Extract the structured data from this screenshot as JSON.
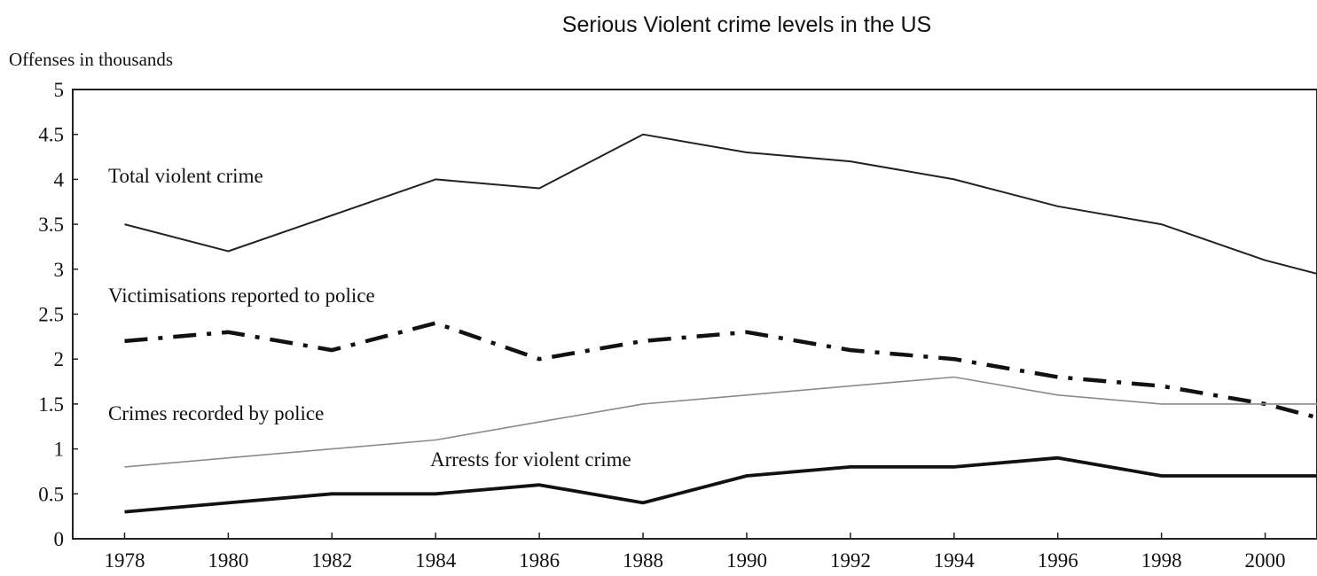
{
  "chart_data": {
    "type": "line",
    "title": "Serious Violent crime levels in the US",
    "xlabel": "",
    "ylabel": "Offenses in thousands",
    "xlim": [
      1977,
      2001
    ],
    "ylim": [
      0,
      5
    ],
    "x_ticks": [
      "1978",
      "1980",
      "1982",
      "1984",
      "1986",
      "1988",
      "1990",
      "1992",
      "1994",
      "1996",
      "1998",
      "2000"
    ],
    "y_ticks": [
      "0",
      "0.5",
      "1",
      "1.5",
      "2",
      "2.5",
      "3",
      "3.5",
      "4",
      "4.5",
      "5"
    ],
    "grid": false,
    "legend": "inline labels",
    "x": [
      1978,
      1980,
      1982,
      1984,
      1986,
      1988,
      1990,
      1992,
      1994,
      1996,
      1998,
      2000,
      2001
    ],
    "series": [
      {
        "name": "Total violent crime",
        "style": "solid-thin",
        "values": [
          3.5,
          3.2,
          3.6,
          4.0,
          3.9,
          4.5,
          4.3,
          4.2,
          4.0,
          3.7,
          3.5,
          3.1,
          2.95
        ]
      },
      {
        "name": "Victimisations reported to police",
        "style": "dash-dot-thick",
        "values": [
          2.2,
          2.3,
          2.1,
          2.4,
          2.0,
          2.2,
          2.3,
          2.1,
          2.0,
          1.8,
          1.7,
          1.5,
          1.35
        ]
      },
      {
        "name": "Crimes recorded by police",
        "style": "solid-light",
        "values": [
          0.8,
          0.9,
          1.0,
          1.1,
          1.3,
          1.5,
          1.6,
          1.7,
          1.8,
          1.6,
          1.5,
          1.5,
          1.5
        ]
      },
      {
        "name": "Arrests for violent crime",
        "style": "solid-thick",
        "values": [
          0.3,
          0.4,
          0.5,
          0.5,
          0.6,
          0.4,
          0.7,
          0.8,
          0.8,
          0.9,
          0.7,
          0.7,
          0.7
        ]
      }
    ]
  }
}
